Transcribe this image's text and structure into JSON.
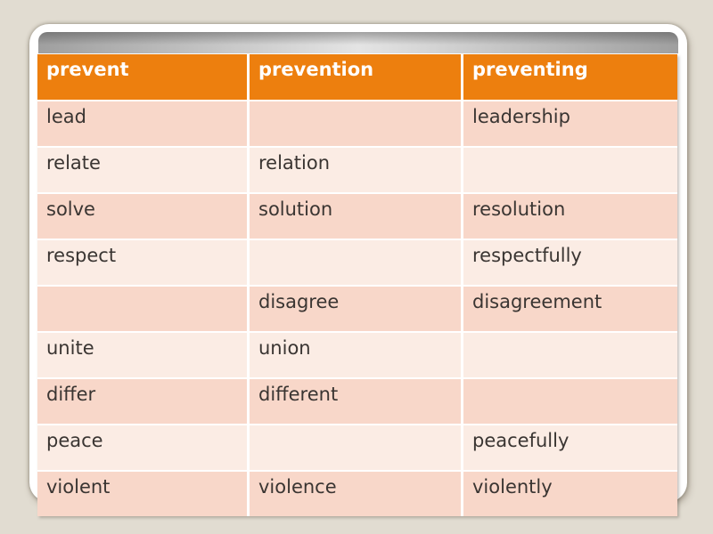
{
  "table": {
    "headers": [
      "prevent",
      "prevention",
      "preventing"
    ],
    "rows": [
      [
        "lead",
        "",
        "leadership"
      ],
      [
        "relate",
        "relation",
        ""
      ],
      [
        "solve",
        "solution",
        "resolution"
      ],
      [
        "respect",
        "",
        "respectfully"
      ],
      [
        "",
        "disagree",
        "disagreement"
      ],
      [
        "unite",
        "union",
        ""
      ],
      [
        "differ",
        "different",
        ""
      ],
      [
        "peace",
        "",
        "peacefully"
      ],
      [
        "violent",
        "violence",
        "violently"
      ]
    ]
  },
  "colors": {
    "background": "#e1dcd1",
    "card": "#ffffff",
    "header_bg": "#ed7f0e",
    "header_text": "#ffffff",
    "row_dark": "#f8d7c9",
    "row_light": "#fbece4",
    "body_text": "#3a3532",
    "divider": "#ffffff",
    "gray_bar_dark": "#9f9f9f",
    "gray_bar_light": "#e4e4e4"
  }
}
